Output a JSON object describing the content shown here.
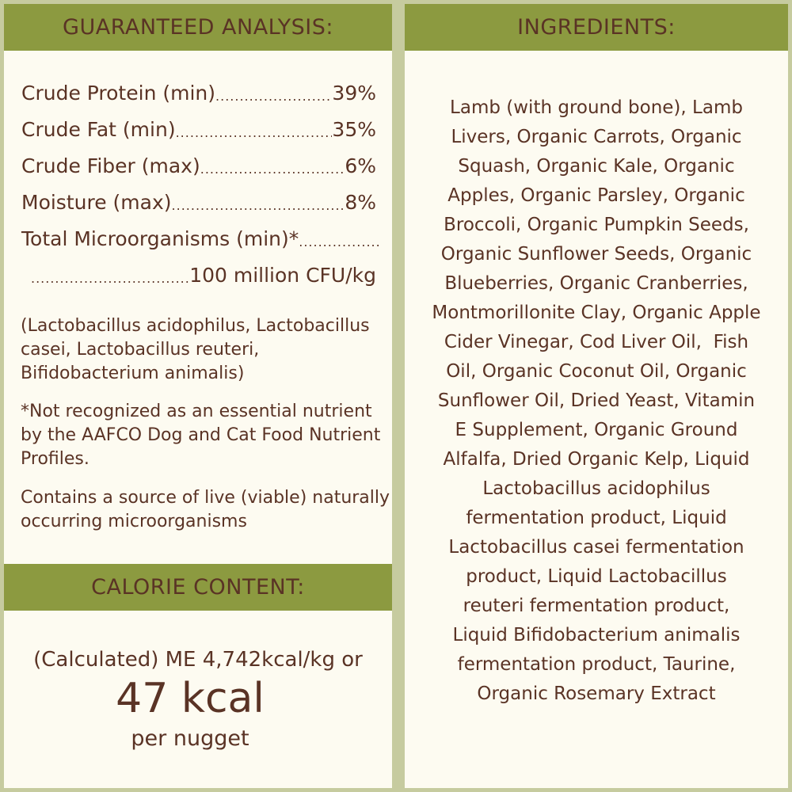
{
  "analysis": {
    "title": "GUARANTEED ANALYSIS:",
    "rows": [
      {
        "label": "Crude Protein (min)",
        "value": "39%"
      },
      {
        "label": "Crude Fat (min)",
        "value": "35%"
      },
      {
        "label": "Crude Fiber (max)",
        "value": "6%"
      },
      {
        "label": "Moisture (max)",
        "value": "8%"
      },
      {
        "label": "Total Microorganisms (min)*",
        "value": ""
      },
      {
        "label": "",
        "value": "100 million CFU/kg"
      }
    ],
    "dots": "......................................................",
    "strains": "(Lactobacillus acidophilus, Lactobacillus casei, Lactobacillus reuteri, Bifidobacterium animalis)",
    "footnote": "*Not recognized as an essential nutrient by the AAFCO Dog and Cat Food Nutrient Profiles.",
    "live_note": "Contains a source of live (viable) naturally occurring microorganisms"
  },
  "calorie": {
    "title": "CALORIE CONTENT:",
    "line1": "(Calculated) ME 4,742kcal/kg or",
    "big": "47 kcal",
    "line3": "per nugget"
  },
  "ingredients": {
    "title": "INGREDIENTS:",
    "lines": [
      "Lamb (with ground bone), Lamb",
      "Livers, Organic Carrots, Organic",
      "Squash, Organic Kale, Organic",
      "Apples, Organic Parsley, Organic",
      "Broccoli, Organic Pumpkin Seeds,",
      "Organic Sunflower Seeds, Organic",
      "Blueberries, Organic Cranberries,",
      "Montmorillonite Clay, Organic Apple",
      "Cider Vinegar, Cod Liver Oil,  Fish",
      "Oil, Organic Coconut Oil, Organic",
      "Sunflower Oil, Dried Yeast, Vitamin",
      "E Supplement, Organic Ground",
      "Alfalfa, Dried Organic Kelp, Liquid",
      "Lactobacillus acidophilus",
      "fermentation product, Liquid",
      "Lactobacillus casei fermentation",
      "product, Liquid Lactobacillus",
      "reuteri fermentation product,",
      "Liquid Bifidobacterium animalis",
      "fermentation product, Taurine,",
      "Organic Rosemary Extract"
    ]
  },
  "colors": {
    "header": "#8c9a40",
    "text": "#5a3325",
    "panel": "#fdfbf1",
    "background": "#c6cb9f"
  }
}
